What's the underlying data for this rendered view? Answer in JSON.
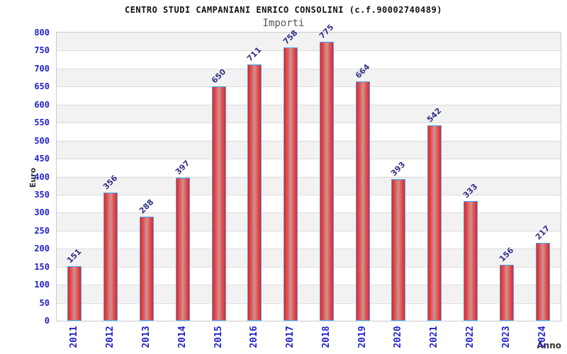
{
  "chart_data": {
    "type": "bar",
    "title": "CENTRO STUDI CAMPANIANI ENRICO CONSOLINI (c.f.90002740489)",
    "subtitle": "Importi",
    "xlabel": "Anno",
    "ylabel": "Euro",
    "categories": [
      "2011",
      "2012",
      "2013",
      "2014",
      "2015",
      "2016",
      "2017",
      "2018",
      "2019",
      "2020",
      "2021",
      "2022",
      "2023",
      "2024"
    ],
    "values": [
      151,
      356,
      288,
      397,
      650,
      711,
      758,
      775,
      664,
      393,
      542,
      333,
      156,
      217
    ],
    "ylim": [
      0,
      800
    ],
    "ytick_step": 50,
    "yticks": [
      0,
      50,
      100,
      150,
      200,
      250,
      300,
      350,
      400,
      450,
      500,
      550,
      600,
      650,
      700,
      750,
      800
    ],
    "grid": true,
    "legend": "none",
    "background_stripes": "alternating horizontal bands every 50 units, gray band 750-800 at top, white band 0-50 at bottom",
    "colors": {
      "bar_edge": "#e52222",
      "bar_light": "#de5c5c",
      "bar_mid": "#cc9494",
      "bar_border": "#4aa2f2",
      "axis_text": "#2222cc",
      "value_label": "#333388",
      "stripe": "#f2f2f2",
      "gridline": "#dcdcdc",
      "frame": "#c9c9c9",
      "title": "#111111",
      "subtitle": "#555555",
      "axis_title": "#333333"
    }
  }
}
